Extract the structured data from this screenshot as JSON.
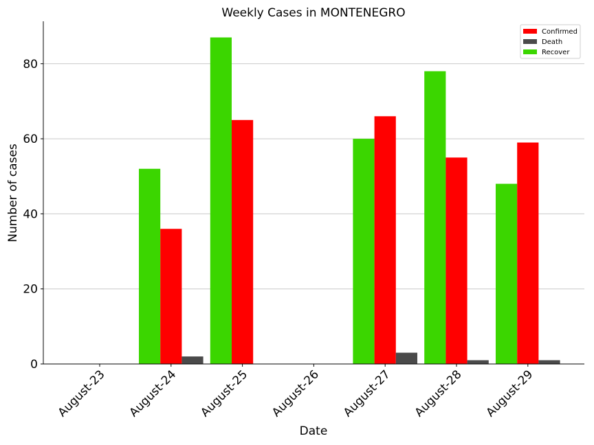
{
  "chart_data": {
    "type": "bar",
    "title": "Weekly Cases in MONTENEGRO",
    "xlabel": "Date",
    "ylabel": "Number of cases",
    "categories": [
      "August-23",
      "August-24",
      "August-25",
      "August-26",
      "August-27",
      "August-28",
      "August-29"
    ],
    "series": [
      {
        "name": "Recover",
        "color": "#3bd600",
        "values": [
          0,
          52,
          87,
          0,
          60,
          78,
          48
        ]
      },
      {
        "name": "Confirmed",
        "color": "#ff0000",
        "values": [
          0,
          36,
          65,
          0,
          66,
          55,
          59
        ]
      },
      {
        "name": "Death",
        "color": "#4a4a4a",
        "values": [
          0,
          2,
          0,
          0,
          3,
          1,
          1
        ]
      }
    ],
    "legend_order": [
      "Confirmed",
      "Death",
      "Recover"
    ],
    "ylim": [
      0,
      91.3
    ],
    "yticks": [
      0,
      20,
      40,
      60,
      80
    ],
    "grid": "y",
    "legend_position": "top-right"
  }
}
